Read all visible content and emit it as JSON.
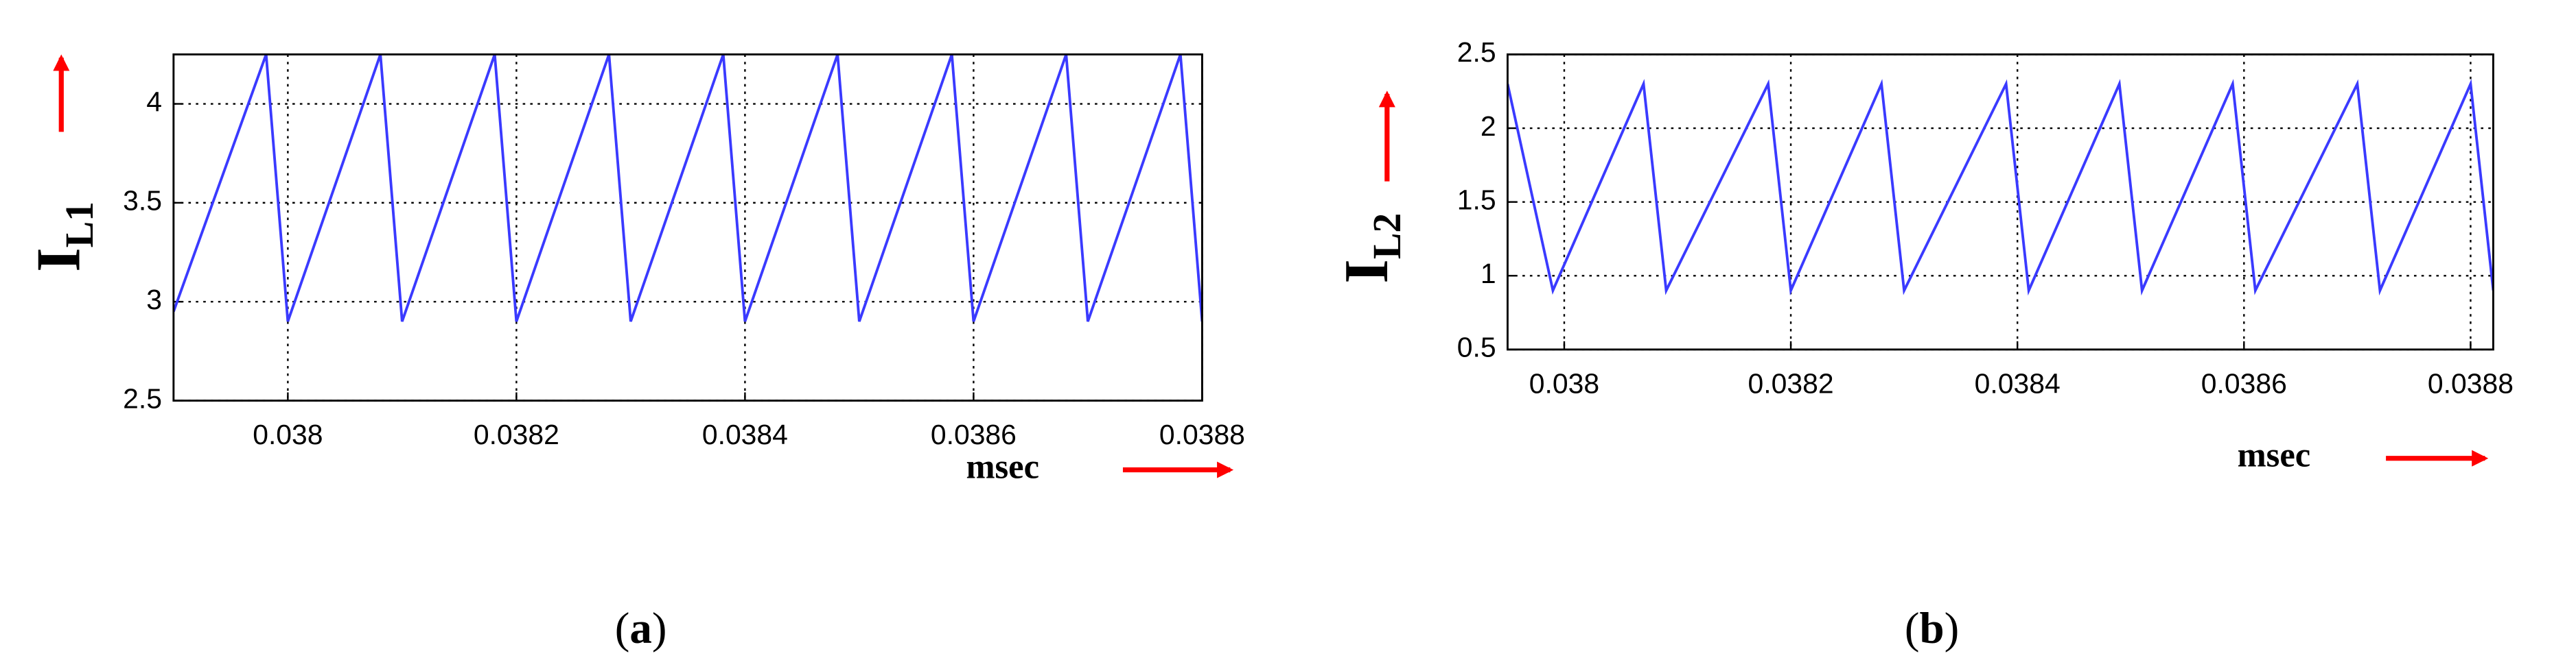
{
  "chart_data": [
    {
      "type": "line",
      "panel": "a",
      "ylabel": "I",
      "ylabel_sub": "L1",
      "xlabel": "msec",
      "xlim": [
        0.0379,
        0.0388
      ],
      "xticks": [
        0.038,
        0.0382,
        0.0384,
        0.0386,
        0.0388
      ],
      "ylim": [
        2.5,
        4.25
      ],
      "yticks": [
        2.5,
        3,
        3.5,
        4
      ],
      "grid": true,
      "x": [
        0.0379,
        0.037981,
        0.038,
        0.038081,
        0.0381,
        0.038181,
        0.0382,
        0.038281,
        0.0383,
        0.038381,
        0.0384,
        0.038481,
        0.0385,
        0.038581,
        0.0386,
        0.038681,
        0.0387,
        0.038781,
        0.0388
      ],
      "series": [
        {
          "color": "#3a3aff",
          "values": [
            2.95,
            4.25,
            2.9,
            4.25,
            2.9,
            4.25,
            2.9,
            4.25,
            2.9,
            4.25,
            2.9,
            4.25,
            2.9,
            4.25,
            2.9,
            4.25,
            2.9,
            4.25,
            2.9
          ]
        }
      ]
    },
    {
      "type": "line",
      "panel": "b",
      "ylabel": "I",
      "ylabel_sub": "L2",
      "xlabel": "msec",
      "xlim": [
        0.03795,
        0.03882
      ],
      "xticks": [
        0.038,
        0.0382,
        0.0384,
        0.0386,
        0.0388
      ],
      "ylim": [
        0.5,
        2.5
      ],
      "yticks": [
        0.5,
        1,
        1.5,
        2,
        2.5
      ],
      "grid": true,
      "x": [
        0.03795,
        0.03799,
        0.03807,
        0.03809,
        0.03818,
        0.0382,
        0.03828,
        0.0383,
        0.03839,
        0.03841,
        0.03849,
        0.03851,
        0.03859,
        0.03861,
        0.0387,
        0.03872,
        0.0388,
        0.03882
      ],
      "series": [
        {
          "color": "#3a3aff",
          "values": [
            2.3,
            0.9,
            2.3,
            0.9,
            2.3,
            0.9,
            2.3,
            0.9,
            2.3,
            0.9,
            2.3,
            0.9,
            2.3,
            0.9,
            2.3,
            0.9,
            2.3,
            0.9
          ]
        }
      ]
    }
  ]
}
